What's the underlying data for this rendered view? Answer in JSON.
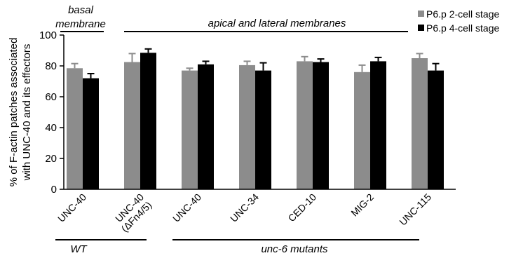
{
  "chart_data": {
    "type": "bar",
    "title": "",
    "ylabel": "% of F-actin patches associated with UNC-40 and its effectors",
    "ylabel_lines": [
      "% of F-actin patches associated",
      "with UNC-40 and its effectors"
    ],
    "ylim": [
      0,
      100
    ],
    "yticks": [
      0,
      20,
      40,
      60,
      80,
      100
    ],
    "categories": [
      "UNC-40",
      "UNC-40\n(ΔFn4/5)",
      "UNC-40",
      "UNC-34",
      "CED-10",
      "MIG-2",
      "UNC-115"
    ],
    "category_lines": [
      [
        "UNC-40"
      ],
      [
        "UNC-40",
        "(ΔFn4/5)"
      ],
      [
        "UNC-40"
      ],
      [
        "UNC-34"
      ],
      [
        "CED-10"
      ],
      [
        "MIG-2"
      ],
      [
        "UNC-115"
      ]
    ],
    "series": [
      {
        "name": "P6.p 2-cell stage",
        "color": "#8c8c8c",
        "values": [
          78.5,
          82.5,
          77,
          80.5,
          83,
          76,
          85
        ],
        "errors": [
          3,
          5.5,
          1.5,
          2.5,
          3,
          4.5,
          3
        ]
      },
      {
        "name": "P6.p 4-cell stage",
        "color": "#000000",
        "values": [
          72,
          88.5,
          81,
          77,
          82.5,
          83,
          77
        ],
        "errors": [
          3,
          2.5,
          2,
          5,
          2,
          2.5,
          4.5
        ]
      }
    ],
    "legend_position": "top-right",
    "grid": false,
    "top_annotations": [
      {
        "lines": [
          "basal",
          "membrane"
        ],
        "span": [
          0,
          0
        ]
      },
      {
        "lines": [
          "apical and lateral membranes"
        ],
        "span": [
          1,
          6
        ]
      }
    ],
    "bottom_groups": [
      {
        "label": "WT",
        "span": [
          0,
          1
        ]
      },
      {
        "label": "unc-6 mutants",
        "span": [
          2,
          6
        ]
      }
    ]
  }
}
